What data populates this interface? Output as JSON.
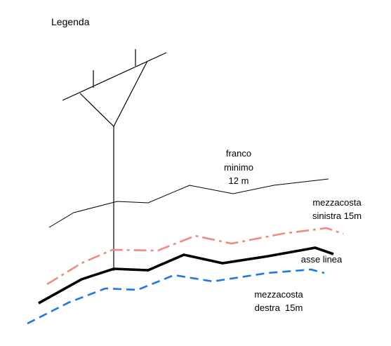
{
  "legend": {
    "title": "Legenda",
    "franco_minimo": [
      "franco",
      "minimo",
      "12 m"
    ],
    "mezzacosta_sinistra": [
      "mezzacosta",
      "sinistra 15m"
    ],
    "asse_linea": "asse linea",
    "mezzacosta_destra": [
      "mezzacosta",
      "destra  15m"
    ]
  },
  "colors": {
    "franco_minimo": "#000000",
    "mezzacosta_sinistra": "#f08a80",
    "asse_linea": "#000000",
    "mezzacosta_destra": "#1e78e6",
    "tower": "#000000"
  }
}
